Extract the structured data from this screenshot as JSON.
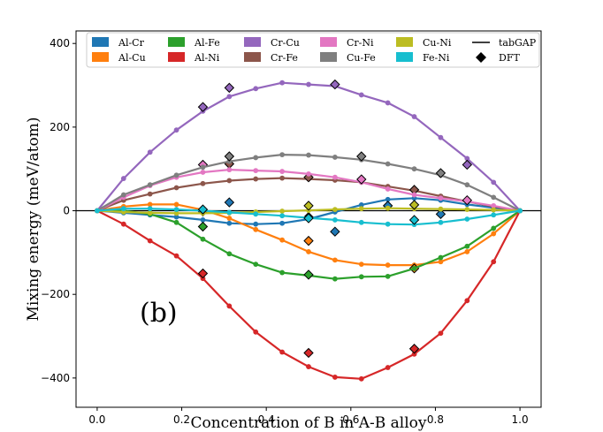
{
  "chart_data": {
    "type": "line",
    "xlabel": "Concentration of B in A-B alloy",
    "ylabel": "Mixing energy (meV/atom)",
    "annotation": "(b)",
    "xlim": [
      -0.05,
      1.05
    ],
    "ylim": [
      -470,
      430
    ],
    "xticks": [
      0.0,
      0.2,
      0.4,
      0.6,
      0.8,
      1.0
    ],
    "xtick_labels": [
      "0.0",
      "0.2",
      "0.4",
      "0.6",
      "0.8",
      "1.0"
    ],
    "yticks": [
      -400,
      -200,
      0,
      200,
      400
    ],
    "ytick_labels": [
      "−400",
      "−200",
      "0",
      "200",
      "400"
    ],
    "legend_position": "upper center",
    "legend_fit_label": "tabGAP",
    "legend_dft_label": "DFT",
    "series": [
      {
        "name": "Al-Cr",
        "color": "#1f77b4",
        "x": [
          0,
          0.0625,
          0.125,
          0.1875,
          0.25,
          0.3125,
          0.375,
          0.4375,
          0.5,
          0.5625,
          0.625,
          0.6875,
          0.75,
          0.8125,
          0.875,
          0.9375,
          1
        ],
        "y": [
          0,
          -5,
          -10,
          -15,
          -22,
          -30,
          -32,
          -30,
          -20,
          -3,
          14,
          27,
          30,
          25,
          15,
          7,
          0
        ],
        "dft_x": [
          0.25,
          0.3125,
          0.5,
          0.5625,
          0.6875,
          0.8125
        ],
        "dft_y": [
          -2,
          20,
          -15,
          -50,
          12,
          -8
        ]
      },
      {
        "name": "Al-Cu",
        "color": "#ff7f0e",
        "x": [
          0,
          0.0625,
          0.125,
          0.1875,
          0.25,
          0.3125,
          0.375,
          0.4375,
          0.5,
          0.5625,
          0.625,
          0.6875,
          0.75,
          0.8125,
          0.875,
          0.9375,
          1
        ],
        "y": [
          0,
          10,
          15,
          15,
          2,
          -18,
          -45,
          -70,
          -98,
          -118,
          -128,
          -130,
          -130,
          -122,
          -98,
          -55,
          0
        ],
        "dft_x": [
          0.5,
          0.75
        ],
        "dft_y": [
          -72,
          -138
        ]
      },
      {
        "name": "Al-Fe",
        "color": "#2ca02c",
        "x": [
          0,
          0.0625,
          0.125,
          0.1875,
          0.25,
          0.3125,
          0.375,
          0.4375,
          0.5,
          0.5625,
          0.625,
          0.6875,
          0.75,
          0.8125,
          0.875,
          0.9375,
          1
        ],
        "y": [
          0,
          0,
          -8,
          -28,
          -68,
          -103,
          -128,
          -148,
          -155,
          -163,
          -158,
          -157,
          -138,
          -112,
          -85,
          -42,
          0
        ],
        "dft_x": [
          0.25,
          0.5
        ],
        "dft_y": [
          -38,
          -153
        ]
      },
      {
        "name": "Al-Ni",
        "color": "#d62728",
        "x": [
          0,
          0.0625,
          0.125,
          0.1875,
          0.25,
          0.3125,
          0.375,
          0.4375,
          0.5,
          0.5625,
          0.625,
          0.6875,
          0.75,
          0.8125,
          0.875,
          0.9375,
          1
        ],
        "y": [
          0,
          -32,
          -72,
          -108,
          -162,
          -228,
          -290,
          -338,
          -373,
          -398,
          -402,
          -375,
          -343,
          -293,
          -215,
          -122,
          0
        ],
        "dft_x": [
          0.25,
          0.5,
          0.75
        ],
        "dft_y": [
          -150,
          -340,
          -330
        ]
      },
      {
        "name": "Cr-Cu",
        "color": "#9467bd",
        "x": [
          0,
          0.0625,
          0.125,
          0.1875,
          0.25,
          0.3125,
          0.375,
          0.4375,
          0.5,
          0.5625,
          0.625,
          0.6875,
          0.75,
          0.8125,
          0.875,
          0.9375,
          1
        ],
        "y": [
          0,
          77,
          140,
          193,
          238,
          273,
          292,
          306,
          302,
          298,
          277,
          258,
          225,
          175,
          125,
          68,
          0
        ],
        "dft_x": [
          0.25,
          0.3125,
          0.5625,
          0.875
        ],
        "dft_y": [
          248,
          294,
          302,
          110
        ]
      },
      {
        "name": "Cr-Fe",
        "color": "#8c564b",
        "x": [
          0,
          0.0625,
          0.125,
          0.1875,
          0.25,
          0.3125,
          0.375,
          0.4375,
          0.5,
          0.5625,
          0.625,
          0.6875,
          0.75,
          0.8125,
          0.875,
          0.9375,
          1
        ],
        "y": [
          0,
          25,
          40,
          55,
          65,
          72,
          76,
          78,
          76,
          73,
          68,
          58,
          48,
          35,
          22,
          10,
          0
        ],
        "dft_x": [
          0.3125,
          0.5,
          0.75
        ],
        "dft_y": [
          112,
          80,
          50
        ]
      },
      {
        "name": "Cr-Ni",
        "color": "#e377c2",
        "x": [
          0,
          0.0625,
          0.125,
          0.1875,
          0.25,
          0.3125,
          0.375,
          0.4375,
          0.5,
          0.5625,
          0.625,
          0.6875,
          0.75,
          0.8125,
          0.875,
          0.9375,
          1
        ],
        "y": [
          0,
          32,
          60,
          80,
          92,
          98,
          96,
          94,
          88,
          80,
          68,
          52,
          38,
          30,
          22,
          12,
          0
        ],
        "dft_x": [
          0.25,
          0.625,
          0.875
        ],
        "dft_y": [
          110,
          75,
          25
        ]
      },
      {
        "name": "Cu-Fe",
        "color": "#7f7f7f",
        "x": [
          0,
          0.0625,
          0.125,
          0.1875,
          0.25,
          0.3125,
          0.375,
          0.4375,
          0.5,
          0.5625,
          0.625,
          0.6875,
          0.75,
          0.8125,
          0.875,
          0.9375,
          1
        ],
        "y": [
          0,
          38,
          62,
          85,
          104,
          118,
          127,
          134,
          133,
          128,
          122,
          112,
          100,
          85,
          62,
          32,
          0
        ],
        "dft_x": [
          0.3125,
          0.625,
          0.8125
        ],
        "dft_y": [
          130,
          130,
          90
        ]
      },
      {
        "name": "Cu-Ni",
        "color": "#bcbd22",
        "x": [
          0,
          0.0625,
          0.125,
          0.1875,
          0.25,
          0.3125,
          0.375,
          0.4375,
          0.5,
          0.5625,
          0.625,
          0.6875,
          0.75,
          0.8125,
          0.875,
          0.9375,
          1
        ],
        "y": [
          0,
          -3,
          -5,
          -6,
          -6,
          -5,
          -3,
          -1,
          1,
          3,
          5,
          6,
          5,
          4,
          3,
          2,
          0
        ],
        "dft_x": [
          0.5,
          0.75
        ],
        "dft_y": [
          12,
          14
        ]
      },
      {
        "name": "Fe-Ni",
        "color": "#17becf",
        "x": [
          0,
          0.0625,
          0.125,
          0.1875,
          0.25,
          0.3125,
          0.375,
          0.4375,
          0.5,
          0.5625,
          0.625,
          0.6875,
          0.75,
          0.8125,
          0.875,
          0.9375,
          1
        ],
        "y": [
          0,
          5,
          5,
          3,
          0,
          -4,
          -8,
          -12,
          -17,
          -22,
          -28,
          -32,
          -33,
          -28,
          -20,
          -10,
          0
        ],
        "dft_x": [
          0.25,
          0.5,
          0.75
        ],
        "dft_y": [
          3,
          -18,
          -22
        ]
      }
    ]
  }
}
